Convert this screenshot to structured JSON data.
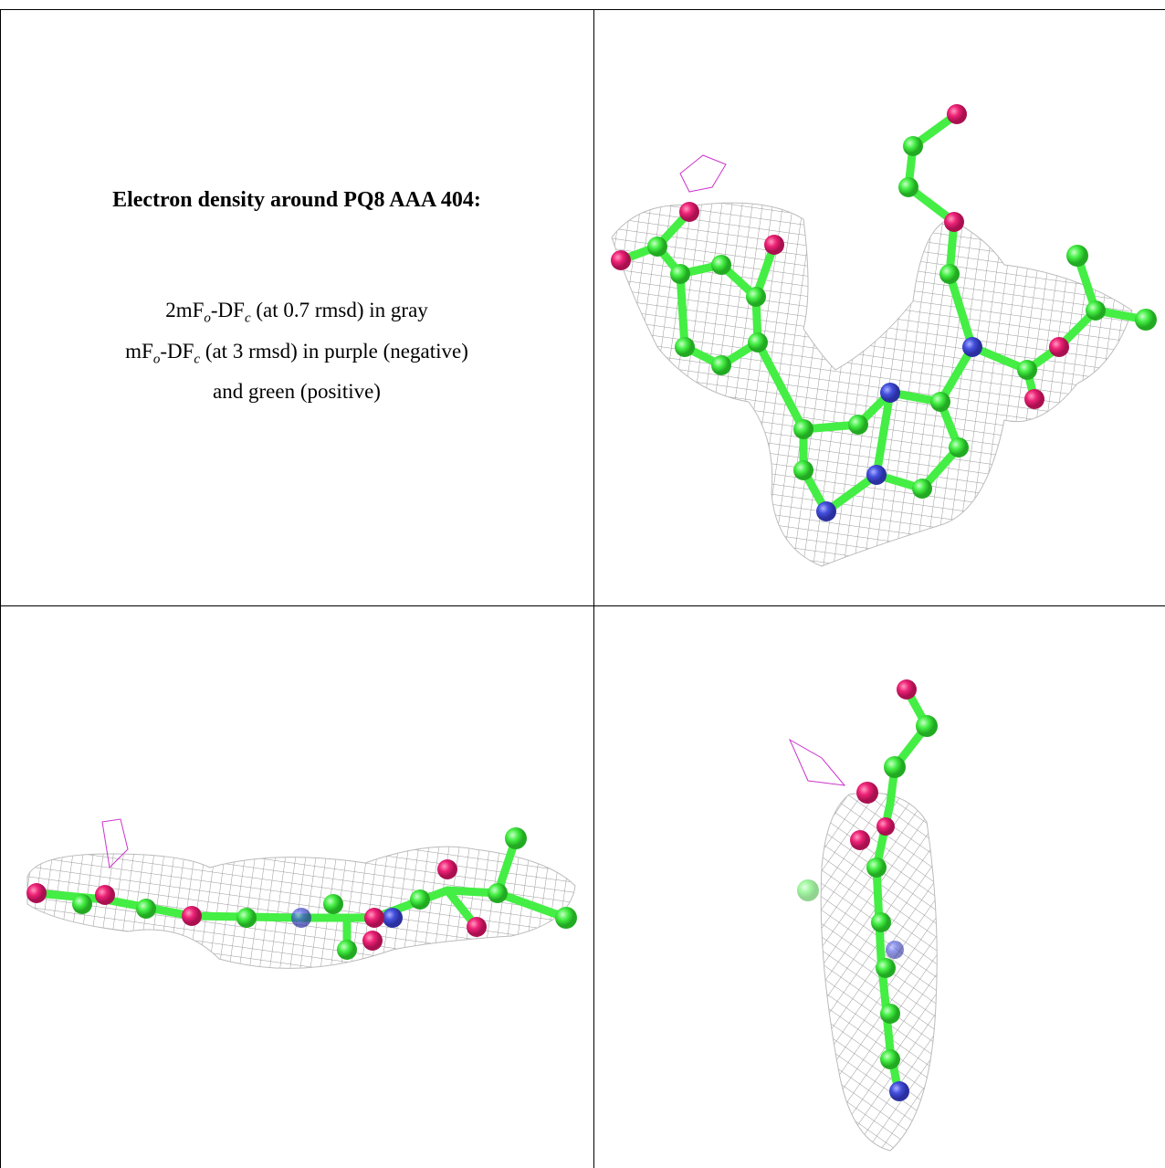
{
  "panel": {
    "title": "Electron density around PQ8 AAA 404:",
    "caption": [
      {
        "parts": [
          "2mF",
          "o",
          "-DF",
          "c",
          " (at 0.7 rmsd) in gray"
        ]
      },
      {
        "parts": [
          "mF",
          "o",
          "-DF",
          "c",
          " (at 3 rmsd) in purple (negative)"
        ]
      },
      {
        "parts": [
          "and green (positive)"
        ]
      }
    ]
  }
}
